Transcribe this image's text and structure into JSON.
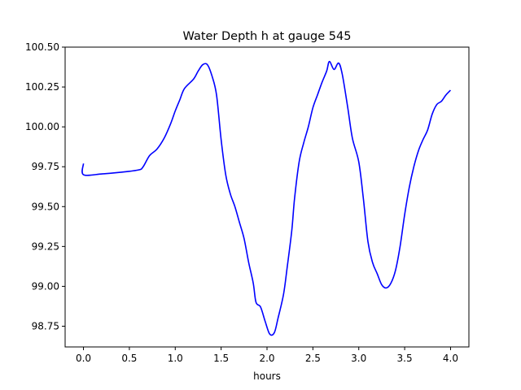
{
  "chart_data": {
    "type": "line",
    "title": "Water Depth h at gauge 545",
    "xlabel": "hours",
    "ylabel": "",
    "xlim": [
      -0.2,
      4.2
    ],
    "ylim": [
      98.62,
      100.5
    ],
    "xticks": [
      {
        "value": 0.0,
        "label": "0.0"
      },
      {
        "value": 0.5,
        "label": "0.5"
      },
      {
        "value": 1.0,
        "label": "1.0"
      },
      {
        "value": 1.5,
        "label": "1.5"
      },
      {
        "value": 2.0,
        "label": "2.0"
      },
      {
        "value": 2.5,
        "label": "2.5"
      },
      {
        "value": 3.0,
        "label": "3.0"
      },
      {
        "value": 3.5,
        "label": "3.5"
      },
      {
        "value": 4.0,
        "label": "4.0"
      }
    ],
    "yticks": [
      {
        "value": 98.75,
        "label": "98.75"
      },
      {
        "value": 99.0,
        "label": "99.00"
      },
      {
        "value": 99.25,
        "label": "99.25"
      },
      {
        "value": 99.5,
        "label": "99.50"
      },
      {
        "value": 99.75,
        "label": "99.75"
      },
      {
        "value": 100.0,
        "label": "100.00"
      },
      {
        "value": 100.25,
        "label": "100.25"
      },
      {
        "value": 100.5,
        "label": "100.50"
      }
    ],
    "grid": false,
    "series": [
      {
        "color": "#0000ff",
        "points": [
          [
            0.0,
            99.77
          ],
          [
            0.0,
            99.7
          ],
          [
            0.2,
            99.705
          ],
          [
            0.4,
            99.715
          ],
          [
            0.6,
            99.73
          ],
          [
            0.65,
            99.75
          ],
          [
            0.72,
            99.82
          ],
          [
            0.8,
            99.86
          ],
          [
            0.88,
            99.93
          ],
          [
            0.95,
            100.02
          ],
          [
            1.0,
            100.1
          ],
          [
            1.05,
            100.17
          ],
          [
            1.1,
            100.24
          ],
          [
            1.2,
            100.3
          ],
          [
            1.25,
            100.35
          ],
          [
            1.3,
            100.39
          ],
          [
            1.35,
            100.39
          ],
          [
            1.4,
            100.32
          ],
          [
            1.45,
            100.2
          ],
          [
            1.5,
            99.92
          ],
          [
            1.55,
            99.7
          ],
          [
            1.6,
            99.58
          ],
          [
            1.65,
            99.5
          ],
          [
            1.7,
            99.4
          ],
          [
            1.75,
            99.3
          ],
          [
            1.8,
            99.15
          ],
          [
            1.85,
            99.02
          ],
          [
            1.88,
            98.9
          ],
          [
            1.93,
            98.87
          ],
          [
            1.98,
            98.78
          ],
          [
            2.03,
            98.7
          ],
          [
            2.08,
            98.71
          ],
          [
            2.12,
            98.8
          ],
          [
            2.18,
            98.95
          ],
          [
            2.22,
            99.12
          ],
          [
            2.27,
            99.35
          ],
          [
            2.3,
            99.55
          ],
          [
            2.35,
            99.78
          ],
          [
            2.4,
            99.9
          ],
          [
            2.45,
            100.0
          ],
          [
            2.5,
            100.12
          ],
          [
            2.55,
            100.2
          ],
          [
            2.6,
            100.28
          ],
          [
            2.65,
            100.35
          ],
          [
            2.68,
            100.41
          ],
          [
            2.73,
            100.36
          ],
          [
            2.78,
            100.4
          ],
          [
            2.82,
            100.33
          ],
          [
            2.88,
            100.12
          ],
          [
            2.93,
            99.93
          ],
          [
            3.0,
            99.78
          ],
          [
            3.05,
            99.55
          ],
          [
            3.1,
            99.28
          ],
          [
            3.15,
            99.15
          ],
          [
            3.2,
            99.08
          ],
          [
            3.25,
            99.01
          ],
          [
            3.3,
            98.99
          ],
          [
            3.35,
            99.02
          ],
          [
            3.4,
            99.1
          ],
          [
            3.45,
            99.25
          ],
          [
            3.5,
            99.45
          ],
          [
            3.55,
            99.62
          ],
          [
            3.6,
            99.75
          ],
          [
            3.65,
            99.85
          ],
          [
            3.7,
            99.92
          ],
          [
            3.75,
            99.98
          ],
          [
            3.8,
            100.08
          ],
          [
            3.85,
            100.14
          ],
          [
            3.9,
            100.16
          ],
          [
            3.95,
            100.2
          ],
          [
            4.0,
            100.23
          ]
        ]
      }
    ]
  }
}
